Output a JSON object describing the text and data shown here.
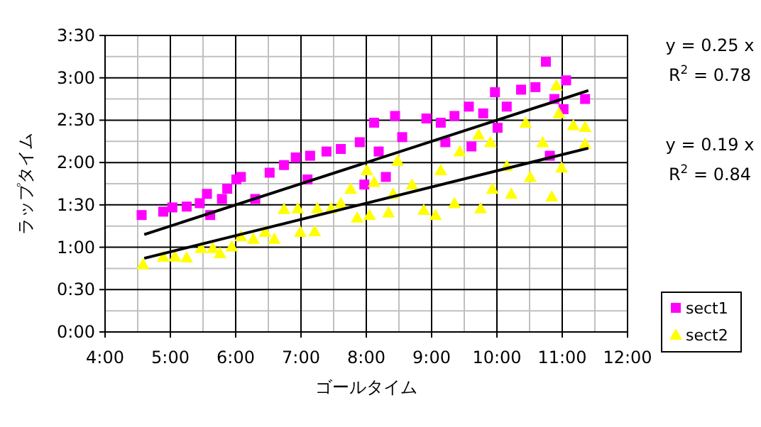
{
  "chart_data": {
    "type": "scatter",
    "xlabel": "ゴールタイム",
    "ylabel": "ラップタイム",
    "xlim": [
      4,
      12
    ],
    "ylim": [
      0,
      3.5
    ],
    "xticks": [
      {
        "value": 4,
        "label": "4:00"
      },
      {
        "value": 5,
        "label": "5:00"
      },
      {
        "value": 6,
        "label": "6:00"
      },
      {
        "value": 7,
        "label": "7:00"
      },
      {
        "value": 8,
        "label": "8:00"
      },
      {
        "value": 9,
        "label": "9:00"
      },
      {
        "value": 10,
        "label": "10:00"
      },
      {
        "value": 11,
        "label": "11:00"
      },
      {
        "value": 12,
        "label": "12:00"
      }
    ],
    "yticks": [
      {
        "value": 0,
        "label": "0:00"
      },
      {
        "value": 0.5,
        "label": "0:30"
      },
      {
        "value": 1,
        "label": "1:00"
      },
      {
        "value": 1.5,
        "label": "1:30"
      },
      {
        "value": 2,
        "label": "2:00"
      },
      {
        "value": 2.5,
        "label": "2:30"
      },
      {
        "value": 3,
        "label": "3:00"
      },
      {
        "value": 3.5,
        "label": "3:30"
      }
    ],
    "grid": true,
    "legend": "bottom right",
    "annotations": [
      "y = 0.25 x",
      "R$^{2}$ = 0.78",
      "y = 0.19 x",
      "R$^{2}$ = 0.84"
    ],
    "series": [
      {
        "name": "sect1",
        "color": "#ff00ff",
        "marker": "square",
        "x": [
          4.56,
          4.89,
          5.03,
          5.25,
          5.45,
          5.56,
          5.61,
          5.79,
          5.87,
          6.01,
          6.08,
          6.3,
          6.52,
          6.74,
          6.92,
          7.14,
          7.1,
          7.39,
          7.61,
          7.9,
          8.12,
          7.97,
          8.19,
          8.44,
          8.3,
          8.55,
          8.92,
          9.14,
          9.21,
          9.35,
          9.57,
          9.61,
          9.79,
          9.97,
          10.01,
          10.15,
          10.37,
          10.59,
          10.75,
          10.88,
          11.06,
          11.02,
          11.35,
          10.81
        ],
        "values": [
          1.38,
          1.42,
          1.47,
          1.48,
          1.52,
          1.63,
          1.38,
          1.57,
          1.69,
          1.8,
          1.83,
          1.57,
          1.88,
          1.97,
          2.06,
          2.08,
          1.8,
          2.13,
          2.16,
          2.24,
          2.47,
          1.74,
          2.13,
          2.55,
          1.83,
          2.3,
          2.52,
          2.47,
          2.24,
          2.55,
          2.66,
          2.19,
          2.58,
          2.83,
          2.41,
          2.66,
          2.86,
          2.89,
          3.19,
          2.75,
          2.97,
          2.63,
          2.75,
          2.08
        ]
      },
      {
        "name": "sect2",
        "color": "#ffff00",
        "marker": "triangle",
        "x": [
          4.58,
          4.89,
          5.07,
          5.25,
          5.47,
          5.65,
          5.76,
          5.94,
          6.08,
          6.27,
          6.45,
          6.59,
          6.74,
          6.95,
          6.99,
          7.25,
          7.21,
          7.46,
          7.61,
          7.76,
          7.86,
          8.01,
          8.12,
          8.05,
          8.34,
          8.48,
          8.41,
          8.7,
          8.88,
          9.06,
          9.14,
          9.35,
          9.43,
          9.72,
          9.75,
          9.9,
          9.93,
          10.15,
          10.22,
          10.44,
          10.51,
          10.7,
          10.84,
          10.91,
          10.95,
          10.99,
          11.17,
          11.35,
          11.35
        ],
        "values": [
          0.8,
          0.89,
          0.89,
          0.88,
          0.99,
          0.99,
          0.93,
          1.01,
          1.13,
          1.1,
          1.18,
          1.1,
          1.45,
          1.46,
          1.18,
          1.46,
          1.19,
          1.46,
          1.52,
          1.69,
          1.35,
          1.91,
          1.77,
          1.38,
          1.41,
          2.02,
          1.63,
          1.74,
          1.44,
          1.38,
          1.91,
          1.52,
          2.13,
          2.33,
          1.46,
          2.24,
          1.69,
          1.96,
          1.63,
          2.47,
          1.83,
          2.24,
          1.6,
          2.91,
          2.58,
          1.94,
          2.44,
          2.42,
          2.22
        ]
      },
      {
        "type": "line",
        "color": "#000000",
        "marker": "none",
        "x": [
          4.6,
          11.4
        ],
        "values": [
          1.15,
          2.85
        ]
      },
      {
        "type": "line",
        "color": "#000000",
        "marker": "none",
        "x": [
          4.6,
          11.4
        ],
        "values": [
          0.87,
          2.17
        ]
      }
    ]
  }
}
